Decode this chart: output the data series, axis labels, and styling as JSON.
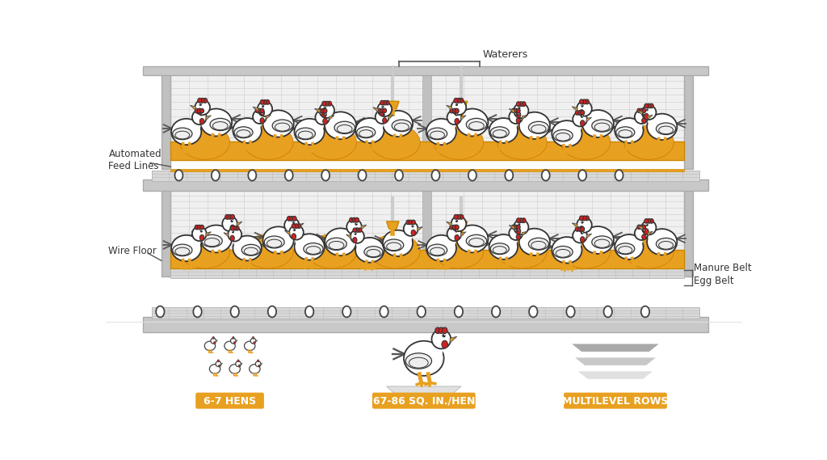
{
  "bg_color": "#ffffff",
  "cage_color": "#c8c8c8",
  "cage_dark": "#a0a0a0",
  "cage_light": "#e8e8e8",
  "feed_color": "#E8A020",
  "egg_color": "#ffffff",
  "chicken_body": "#ffffff",
  "chicken_comb": "#cc2222",
  "chicken_beak": "#E8A020",
  "label_color": "#333333",
  "badge_color": "#E8A020",
  "labels": {
    "waterers": "Waterers",
    "feed_lines": "Automated\nFeed Lines",
    "wire_floor": "Wire Floor",
    "manure_belt": "Manure Belt",
    "egg_belt": "Egg Belt"
  },
  "bottom_labels": [
    "6-7 HENS",
    "67-86 SQ. IN./HEN",
    "MULTILEVEL ROWS"
  ],
  "ann_color": "#555555"
}
